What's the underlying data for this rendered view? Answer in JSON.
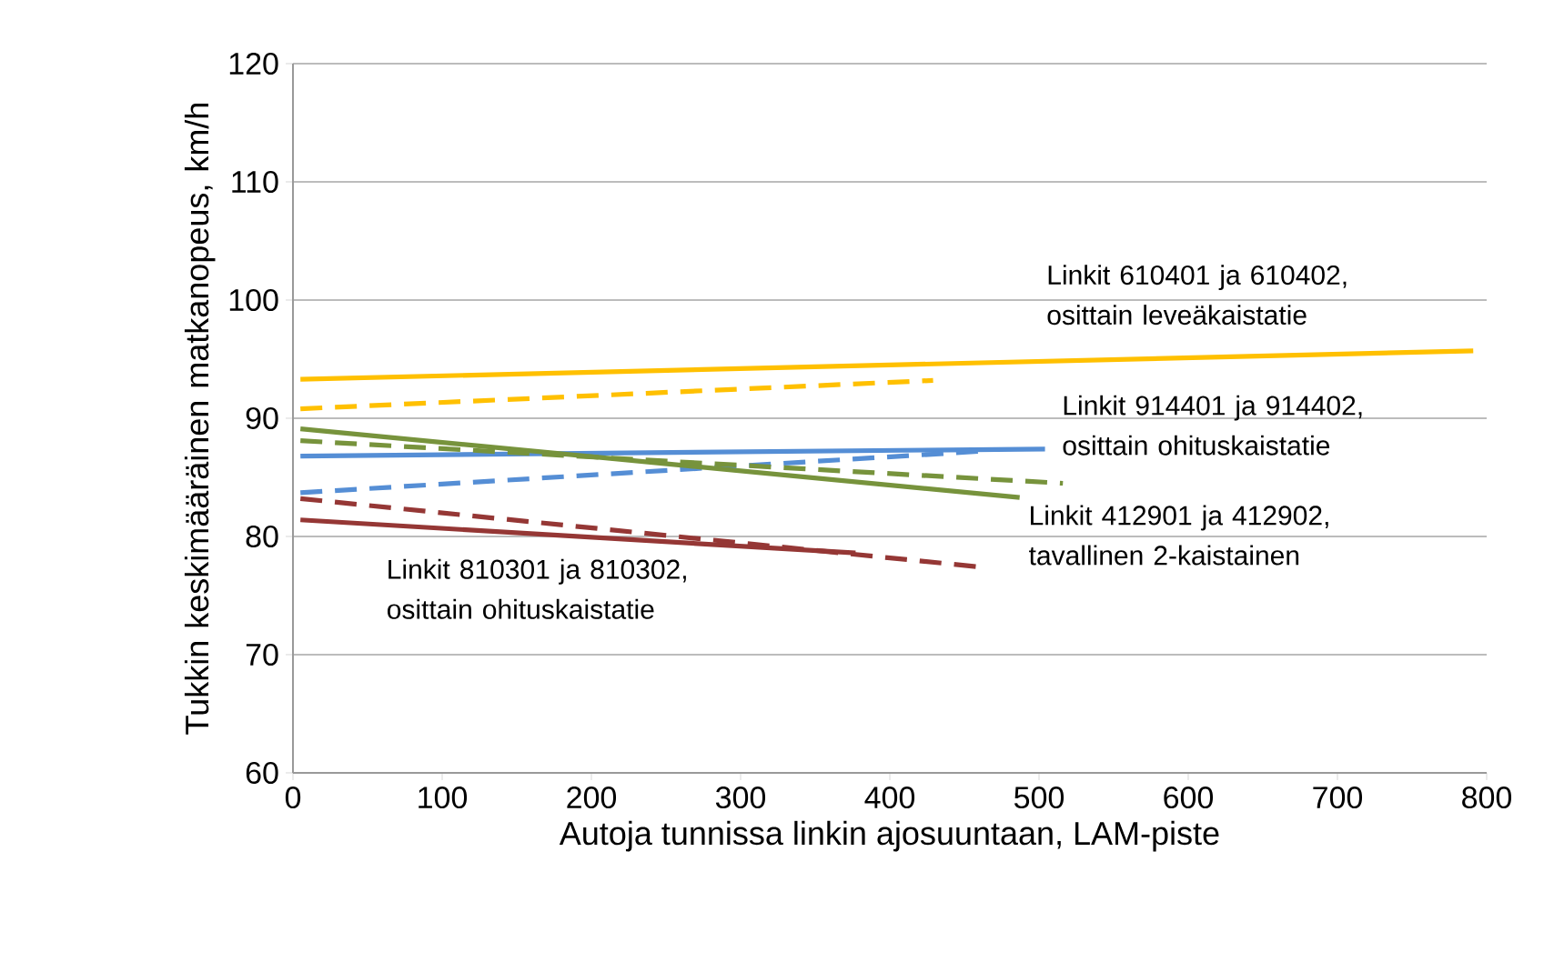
{
  "chart_data": {
    "type": "line",
    "xlabel": "Autoja tunnissa linkin ajosuuntaan, LAM-piste",
    "ylabel": "Tukkin keskimääräinen matkanopeus, km/h",
    "xlim": [
      0,
      800
    ],
    "xticks": [
      0,
      100,
      200,
      300,
      400,
      500,
      600,
      700,
      800
    ],
    "ylim": [
      60,
      120
    ],
    "yticks": [
      60,
      70,
      80,
      90,
      100,
      110,
      120
    ],
    "grid": "y",
    "series": [
      {
        "color": "#ffc000",
        "line_style": "solid",
        "x": [
          5,
          791
        ],
        "values": [
          93.3,
          95.7
        ]
      },
      {
        "color": "#ffc000",
        "line_style": "dashed",
        "x": [
          5,
          429
        ],
        "values": [
          90.8,
          93.2
        ]
      },
      {
        "color": "#558ed5",
        "line_style": "solid",
        "x": [
          5,
          504
        ],
        "values": [
          86.8,
          87.4
        ]
      },
      {
        "color": "#558ed5",
        "line_style": "dashed",
        "x": [
          5,
          460
        ],
        "values": [
          83.7,
          87.2
        ]
      },
      {
        "color": "#77933c",
        "line_style": "solid",
        "x": [
          5,
          487
        ],
        "values": [
          89.1,
          83.3
        ]
      },
      {
        "color": "#77933c",
        "line_style": "dashed",
        "x": [
          5,
          516
        ],
        "values": [
          88.1,
          84.5
        ]
      },
      {
        "color": "#953735",
        "line_style": "solid",
        "x": [
          5,
          377
        ],
        "values": [
          81.4,
          78.6
        ]
      },
      {
        "color": "#953735",
        "line_style": "dashed",
        "x": [
          5,
          462
        ],
        "values": [
          83.2,
          77.4
        ]
      }
    ],
    "annotations": [
      "Linkit 610401  ja 610402, osittain leveäkaistatie",
      "Linkit 914401  ja 914402, osittain ohituskaistatie",
      "Linkit 412901 ja 412902, tavallinen 2-kaistainen",
      "Linkit 810301  ja 810302, osittain ohituskaistatie"
    ]
  }
}
